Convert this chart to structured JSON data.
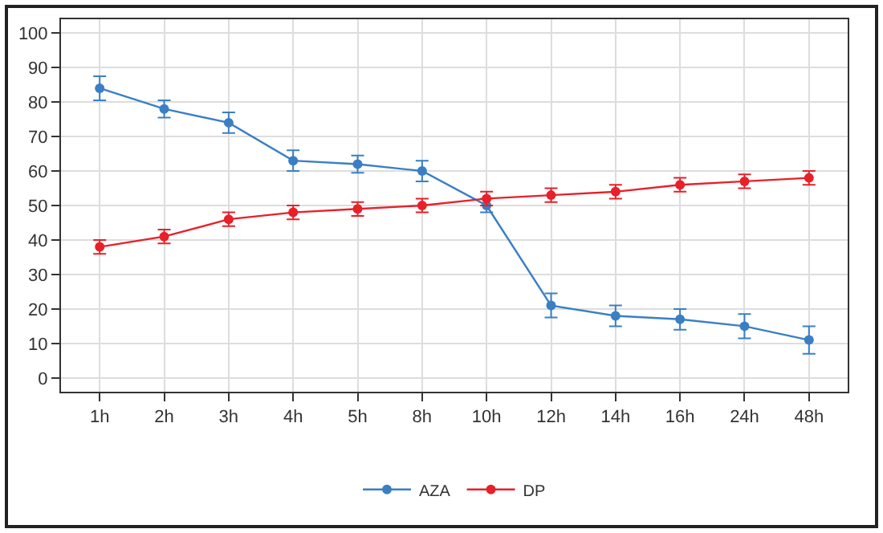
{
  "chart_data": {
    "type": "line",
    "categories": [
      "1h",
      "2h",
      "3h",
      "4h",
      "5h",
      "8h",
      "10h",
      "12h",
      "14h",
      "16h",
      "24h",
      "48h"
    ],
    "series": [
      {
        "name": "AZA",
        "color": "#3a7fc4",
        "values": [
          84,
          78,
          74,
          63,
          62,
          60,
          50,
          21,
          18,
          17,
          15,
          11
        ],
        "errors": [
          3.5,
          2.5,
          3,
          3,
          2.5,
          3,
          2,
          3.5,
          3,
          3,
          3.5,
          4
        ]
      },
      {
        "name": "DP",
        "color": "#e8202a",
        "values": [
          38,
          41,
          46,
          48,
          49,
          50,
          52,
          53,
          54,
          56,
          57,
          58
        ],
        "errors": [
          2,
          2,
          2,
          2,
          2,
          2,
          2,
          2,
          2,
          2,
          2,
          2
        ]
      }
    ],
    "ylim": [
      -4,
      104
    ],
    "yticks": [
      0,
      10,
      20,
      30,
      40,
      50,
      60,
      70,
      80,
      90,
      100
    ],
    "grid": true,
    "legend": "bottom",
    "marker": "circle",
    "line_style": "solid"
  }
}
